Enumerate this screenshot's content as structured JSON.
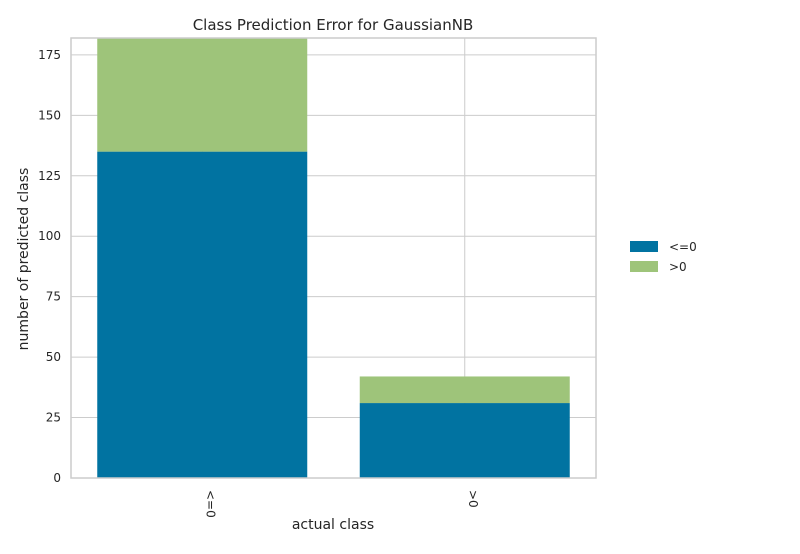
{
  "chart_data": {
    "type": "bar",
    "stacked": true,
    "title": "Class Prediction Error for GaussianNB",
    "xlabel": "actual class",
    "ylabel": "number of predicted class",
    "categories": [
      "<=0",
      ">0"
    ],
    "series": [
      {
        "name": "<=0",
        "color": "#0173a1",
        "values": [
          135,
          31
        ]
      },
      {
        "name": ">0",
        "color": "#9ec47a",
        "values": [
          47,
          11
        ]
      }
    ],
    "ylim": [
      0,
      182
    ],
    "yticks": [
      0,
      25,
      50,
      75,
      100,
      125,
      150,
      175
    ],
    "grid": true,
    "legend_position": "right"
  }
}
